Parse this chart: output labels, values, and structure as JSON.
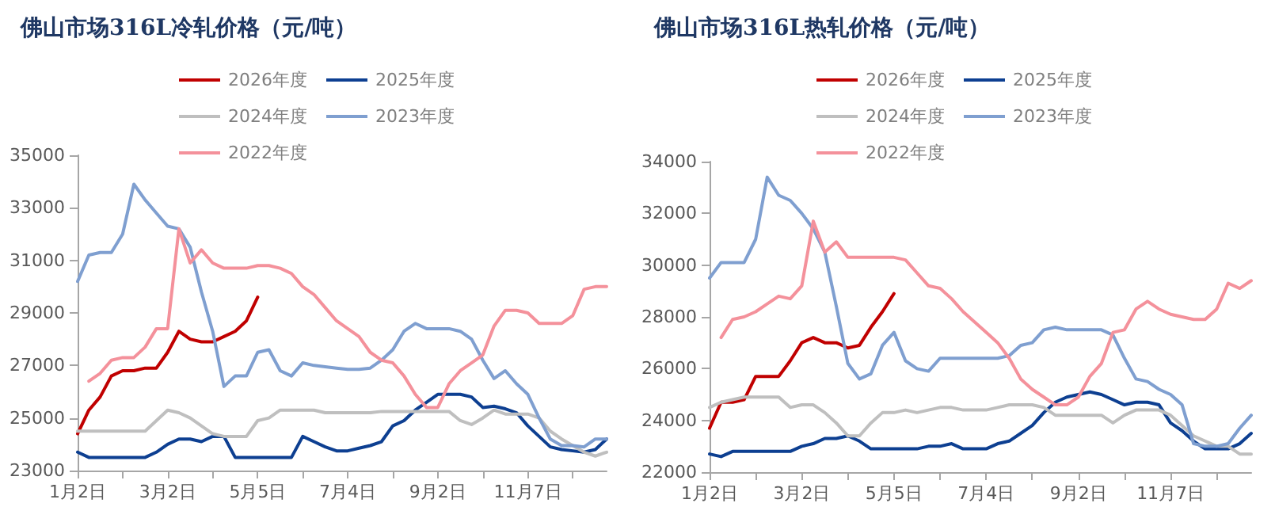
{
  "chart_data": [
    {
      "type": "line",
      "title": "佛山市场316L冷轧价格（元/吨）",
      "legend": "top",
      "grid": false,
      "marker": "none",
      "line_style": "solid",
      "categories": [
        "1月2日",
        null,
        null,
        null,
        null,
        null,
        null,
        null,
        "3月2日",
        null,
        null,
        null,
        null,
        null,
        null,
        null,
        "5月5日",
        null,
        null,
        null,
        null,
        null,
        null,
        null,
        "7月4日",
        null,
        null,
        null,
        null,
        null,
        null,
        null,
        "9月2日",
        null,
        null,
        null,
        null,
        null,
        null,
        null,
        "11月7日",
        null,
        null,
        null,
        null,
        null,
        null,
        null
      ],
      "ylim": [
        23000,
        35000
      ],
      "yticks": [
        23000,
        25000,
        27000,
        29000,
        31000,
        33000,
        35000
      ],
      "series": [
        {
          "name": "2026年度",
          "color": "#c00000",
          "values": [
            24400,
            25300,
            25800,
            26600,
            26800,
            26800,
            26900,
            26900,
            27500,
            28300,
            28000,
            27900,
            27900,
            28100,
            28300,
            28700,
            29600,
            null,
            null,
            null,
            null,
            null,
            null,
            null,
            null,
            null,
            null,
            null,
            null,
            null,
            null,
            null,
            null,
            null,
            null,
            null,
            null,
            null,
            null,
            null,
            null,
            null,
            null,
            null,
            null,
            null,
            null,
            null
          ]
        },
        {
          "name": "2025年度",
          "color": "#0d3f91",
          "values": [
            23700,
            23500,
            23500,
            23500,
            23500,
            23500,
            23500,
            23700,
            24000,
            24200,
            24200,
            24100,
            24300,
            24300,
            23500,
            23500,
            23500,
            23500,
            23500,
            23500,
            24300,
            24100,
            23900,
            23750,
            23750,
            23850,
            23950,
            24100,
            24700,
            24900,
            25300,
            25600,
            25900,
            25900,
            25900,
            25800,
            25400,
            25450,
            25350,
            25200,
            24700,
            24300,
            23900,
            23800,
            23750,
            23700,
            23800,
            24200
          ]
        },
        {
          "name": "2024年度",
          "color": "#bfbfbf",
          "values": [
            24500,
            24500,
            24500,
            24500,
            24500,
            24500,
            24500,
            24900,
            25300,
            25200,
            25000,
            24700,
            24400,
            24300,
            24300,
            24300,
            24900,
            25000,
            25300,
            25300,
            25300,
            25300,
            25200,
            25200,
            25200,
            25200,
            25200,
            25250,
            25250,
            25250,
            25250,
            25250,
            25250,
            25250,
            24900,
            24750,
            25000,
            25300,
            25150,
            25150,
            25150,
            25000,
            24500,
            24200,
            23950,
            23700,
            23550,
            23700
          ]
        },
        {
          "name": "2023年度",
          "color": "#7f9fd0",
          "values": [
            30200,
            31200,
            31300,
            31300,
            32000,
            33900,
            33300,
            32800,
            32300,
            32200,
            31500,
            29800,
            28300,
            26200,
            26600,
            26600,
            27500,
            27600,
            26800,
            26600,
            27100,
            27000,
            26950,
            26900,
            26850,
            26850,
            26900,
            27200,
            27600,
            28300,
            28600,
            28400,
            28400,
            28400,
            28300,
            28000,
            27200,
            26500,
            26800,
            26300,
            25900,
            25000,
            24200,
            23950,
            23950,
            23900,
            24200,
            24200
          ]
        },
        {
          "name": "2022年度",
          "color": "#f4919b",
          "values": [
            null,
            26400,
            26700,
            27200,
            27300,
            27300,
            27700,
            28400,
            28400,
            32200,
            30900,
            31400,
            30900,
            30700,
            30700,
            30700,
            30800,
            30800,
            30700,
            30500,
            30000,
            29700,
            29200,
            28700,
            28400,
            28100,
            27500,
            27200,
            27100,
            26600,
            25900,
            25400,
            25400,
            26300,
            26800,
            27100,
            27400,
            28500,
            29100,
            29100,
            29000,
            28600,
            28600,
            28600,
            28900,
            29900,
            30000,
            30000
          ]
        }
      ]
    },
    {
      "type": "line",
      "title": "佛山市场316L热轧价格（元/吨）",
      "legend": "top",
      "grid": false,
      "marker": "none",
      "line_style": "solid",
      "categories": [
        "1月2日",
        null,
        null,
        null,
        null,
        null,
        null,
        null,
        "3月2日",
        null,
        null,
        null,
        null,
        null,
        null,
        null,
        "5月5日",
        null,
        null,
        null,
        null,
        null,
        null,
        null,
        "7月4日",
        null,
        null,
        null,
        null,
        null,
        null,
        null,
        "9月2日",
        null,
        null,
        null,
        null,
        null,
        null,
        null,
        "11月7日",
        null,
        null,
        null,
        null,
        null,
        null,
        null
      ],
      "ylim": [
        22000,
        34000
      ],
      "yticks": [
        22000,
        24000,
        26000,
        28000,
        30000,
        32000,
        34000
      ],
      "series": [
        {
          "name": "2026年度",
          "color": "#c00000",
          "values": [
            23700,
            24700,
            24700,
            24800,
            25700,
            25700,
            25700,
            26300,
            27000,
            27200,
            27000,
            27000,
            26800,
            26900,
            27600,
            28200,
            28900,
            null,
            null,
            null,
            null,
            null,
            null,
            null,
            null,
            null,
            null,
            null,
            null,
            null,
            null,
            null,
            null,
            null,
            null,
            null,
            null,
            null,
            null,
            null,
            null,
            null,
            null,
            null,
            null,
            null,
            null,
            null
          ]
        },
        {
          "name": "2025年度",
          "color": "#0d3f91",
          "values": [
            22700,
            22600,
            22800,
            22800,
            22800,
            22800,
            22800,
            22800,
            23000,
            23100,
            23300,
            23300,
            23400,
            23200,
            22900,
            22900,
            22900,
            22900,
            22900,
            23000,
            23000,
            23100,
            22900,
            22900,
            22900,
            23100,
            23200,
            23500,
            23800,
            24300,
            24700,
            24900,
            25000,
            25100,
            25000,
            24800,
            24600,
            24700,
            24700,
            24600,
            23900,
            23600,
            23200,
            22900,
            22900,
            22900,
            23100,
            23500
          ]
        },
        {
          "name": "2024年度",
          "color": "#bfbfbf",
          "values": [
            24500,
            24700,
            24800,
            24900,
            24900,
            24900,
            24900,
            24500,
            24600,
            24600,
            24300,
            23900,
            23400,
            23400,
            23900,
            24300,
            24300,
            24400,
            24300,
            24400,
            24500,
            24500,
            24400,
            24400,
            24400,
            24500,
            24600,
            24600,
            24600,
            24500,
            24200,
            24200,
            24200,
            24200,
            24200,
            23900,
            24200,
            24400,
            24400,
            24400,
            24200,
            23800,
            23400,
            23200,
            23000,
            23000,
            22700,
            22700
          ]
        },
        {
          "name": "2023年度",
          "color": "#7f9fd0",
          "values": [
            29500,
            30100,
            30100,
            30100,
            31000,
            33400,
            32700,
            32500,
            32000,
            31400,
            30500,
            28400,
            26200,
            25600,
            25800,
            26900,
            27400,
            26300,
            26000,
            25900,
            26400,
            26400,
            26400,
            26400,
            26400,
            26400,
            26500,
            26900,
            27000,
            27500,
            27600,
            27500,
            27500,
            27500,
            27500,
            27300,
            26400,
            25600,
            25500,
            25200,
            25000,
            24600,
            23100,
            23000,
            23000,
            23100,
            23700,
            24200
          ]
        },
        {
          "name": "2022年度",
          "color": "#f4919b",
          "values": [
            null,
            27200,
            27900,
            28000,
            28200,
            28500,
            28800,
            28700,
            29200,
            31700,
            30500,
            30900,
            30300,
            30300,
            30300,
            30300,
            30300,
            30200,
            29700,
            29200,
            29100,
            28700,
            28200,
            27800,
            27400,
            27000,
            26400,
            25600,
            25200,
            24900,
            24600,
            24600,
            24900,
            25700,
            26200,
            27400,
            27500,
            28300,
            28600,
            28300,
            28100,
            28000,
            27900,
            27900,
            28300,
            29300,
            29100,
            29400
          ]
        }
      ]
    }
  ]
}
